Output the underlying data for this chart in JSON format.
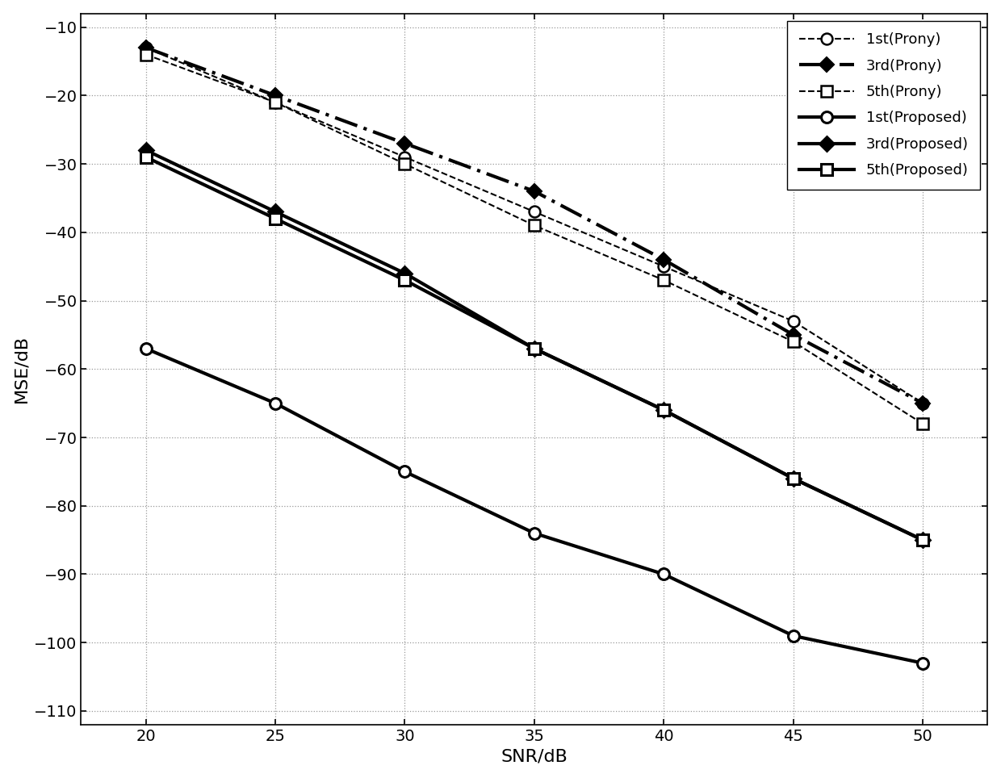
{
  "snr": [
    20,
    25,
    30,
    35,
    40,
    45,
    50
  ],
  "prony_1st": [
    -13,
    -21,
    -29,
    -37,
    -45,
    -53,
    -65
  ],
  "prony_3rd": [
    -13,
    -20,
    -27,
    -34,
    -44,
    -55,
    -65
  ],
  "prony_5th": [
    -14,
    -21,
    -30,
    -39,
    -47,
    -56,
    -68
  ],
  "proposed_1st": [
    -57,
    -65,
    -75,
    -84,
    -90,
    -99,
    -103
  ],
  "proposed_3rd": [
    -28,
    -37,
    -46,
    -57,
    -66,
    -76,
    -85
  ],
  "proposed_5th": [
    -29,
    -38,
    -47,
    -57,
    -66,
    -76,
    -85
  ],
  "xlabel": "SNR/dB",
  "ylabel": "MSE/dB",
  "xlim": [
    17.5,
    52.5
  ],
  "ylim": [
    -112,
    -8
  ],
  "xticks": [
    20,
    25,
    30,
    35,
    40,
    45,
    50
  ],
  "yticks": [
    -110,
    -100,
    -90,
    -80,
    -70,
    -60,
    -50,
    -40,
    -30,
    -20,
    -10
  ],
  "grid_color": "#999999",
  "line_color": "#000000",
  "bg_color": "#ffffff",
  "legend_entries": [
    "1st(Prony)",
    "3rd(Prony)",
    "5th(Prony)",
    "1st(Proposed)",
    "3rd(Proposed)",
    "5th(Proposed)"
  ]
}
